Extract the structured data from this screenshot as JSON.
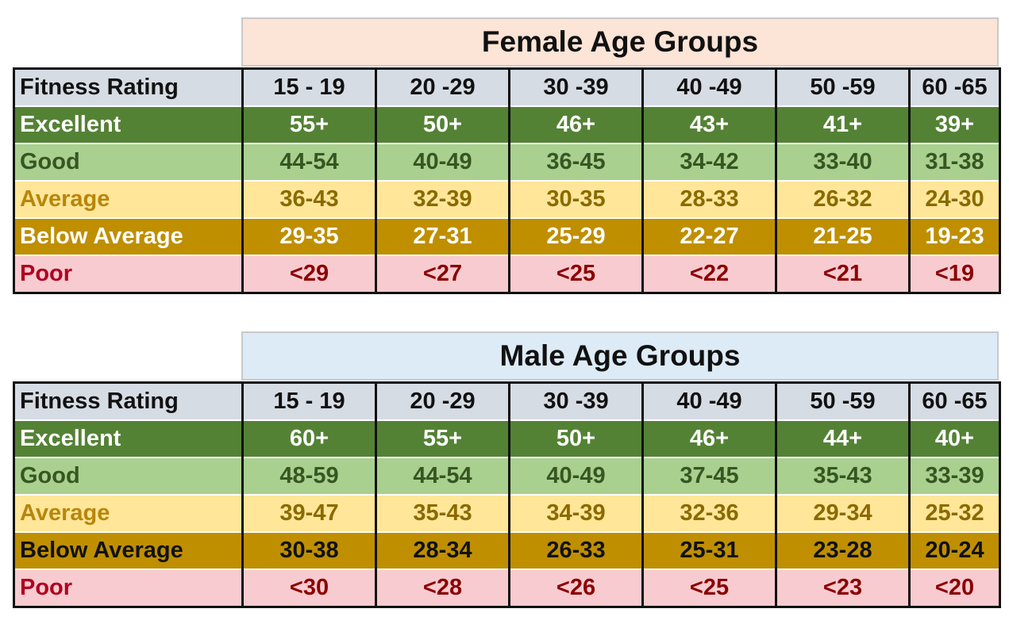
{
  "female": {
    "title": "Female Age Groups",
    "header": [
      "Fitness Rating",
      "15 - 19",
      "20 -29",
      "30 -39",
      "40 -49",
      "50 -59",
      "60 -65"
    ],
    "rows": {
      "excellent": [
        "Excellent",
        "55+",
        "50+",
        "46+",
        "43+",
        "41+",
        "39+"
      ],
      "good": [
        "Good",
        "44-54",
        "40-49",
        "36-45",
        "34-42",
        "33-40",
        "31-38"
      ],
      "average": [
        "Average",
        "36-43",
        "32-39",
        "30-35",
        "28-33",
        "26-32",
        "24-30"
      ],
      "below_average": [
        "Below Average",
        "29-35",
        "27-31",
        "25-29",
        "22-27",
        "21-25",
        "19-23"
      ],
      "poor": [
        "Poor",
        "<29",
        "<27",
        "<25",
        "<22",
        "<21",
        "<19"
      ]
    }
  },
  "male": {
    "title": "Male Age Groups",
    "header": [
      "Fitness Rating",
      "15 - 19",
      "20 -29",
      "30 -39",
      "40 -49",
      "50 -59",
      "60 -65"
    ],
    "rows": {
      "excellent": [
        "Excellent",
        "60+",
        "55+",
        "50+",
        "46+",
        "44+",
        "40+"
      ],
      "good": [
        "Good",
        "48-59",
        "44-54",
        "40-49",
        "37-45",
        "35-43",
        "33-39"
      ],
      "average": [
        "Average",
        "39-47",
        "35-43",
        "34-39",
        "32-36",
        "29-34",
        "25-32"
      ],
      "below_average": [
        "Below Average",
        "30-38",
        "28-34",
        "26-33",
        "25-31",
        "23-28",
        "20-24"
      ],
      "poor": [
        "Poor",
        "<30",
        "<28",
        "<26",
        "<25",
        "<23",
        "<20"
      ]
    }
  },
  "colors": {
    "header": "#d6dce4",
    "excellent": "#548235",
    "good": "#a9d08e",
    "average": "#ffe699",
    "below_average": "#bf8f00",
    "poor": "#f8cbd0",
    "female_title": "#fce4d6",
    "male_title": "#ddebf7"
  }
}
